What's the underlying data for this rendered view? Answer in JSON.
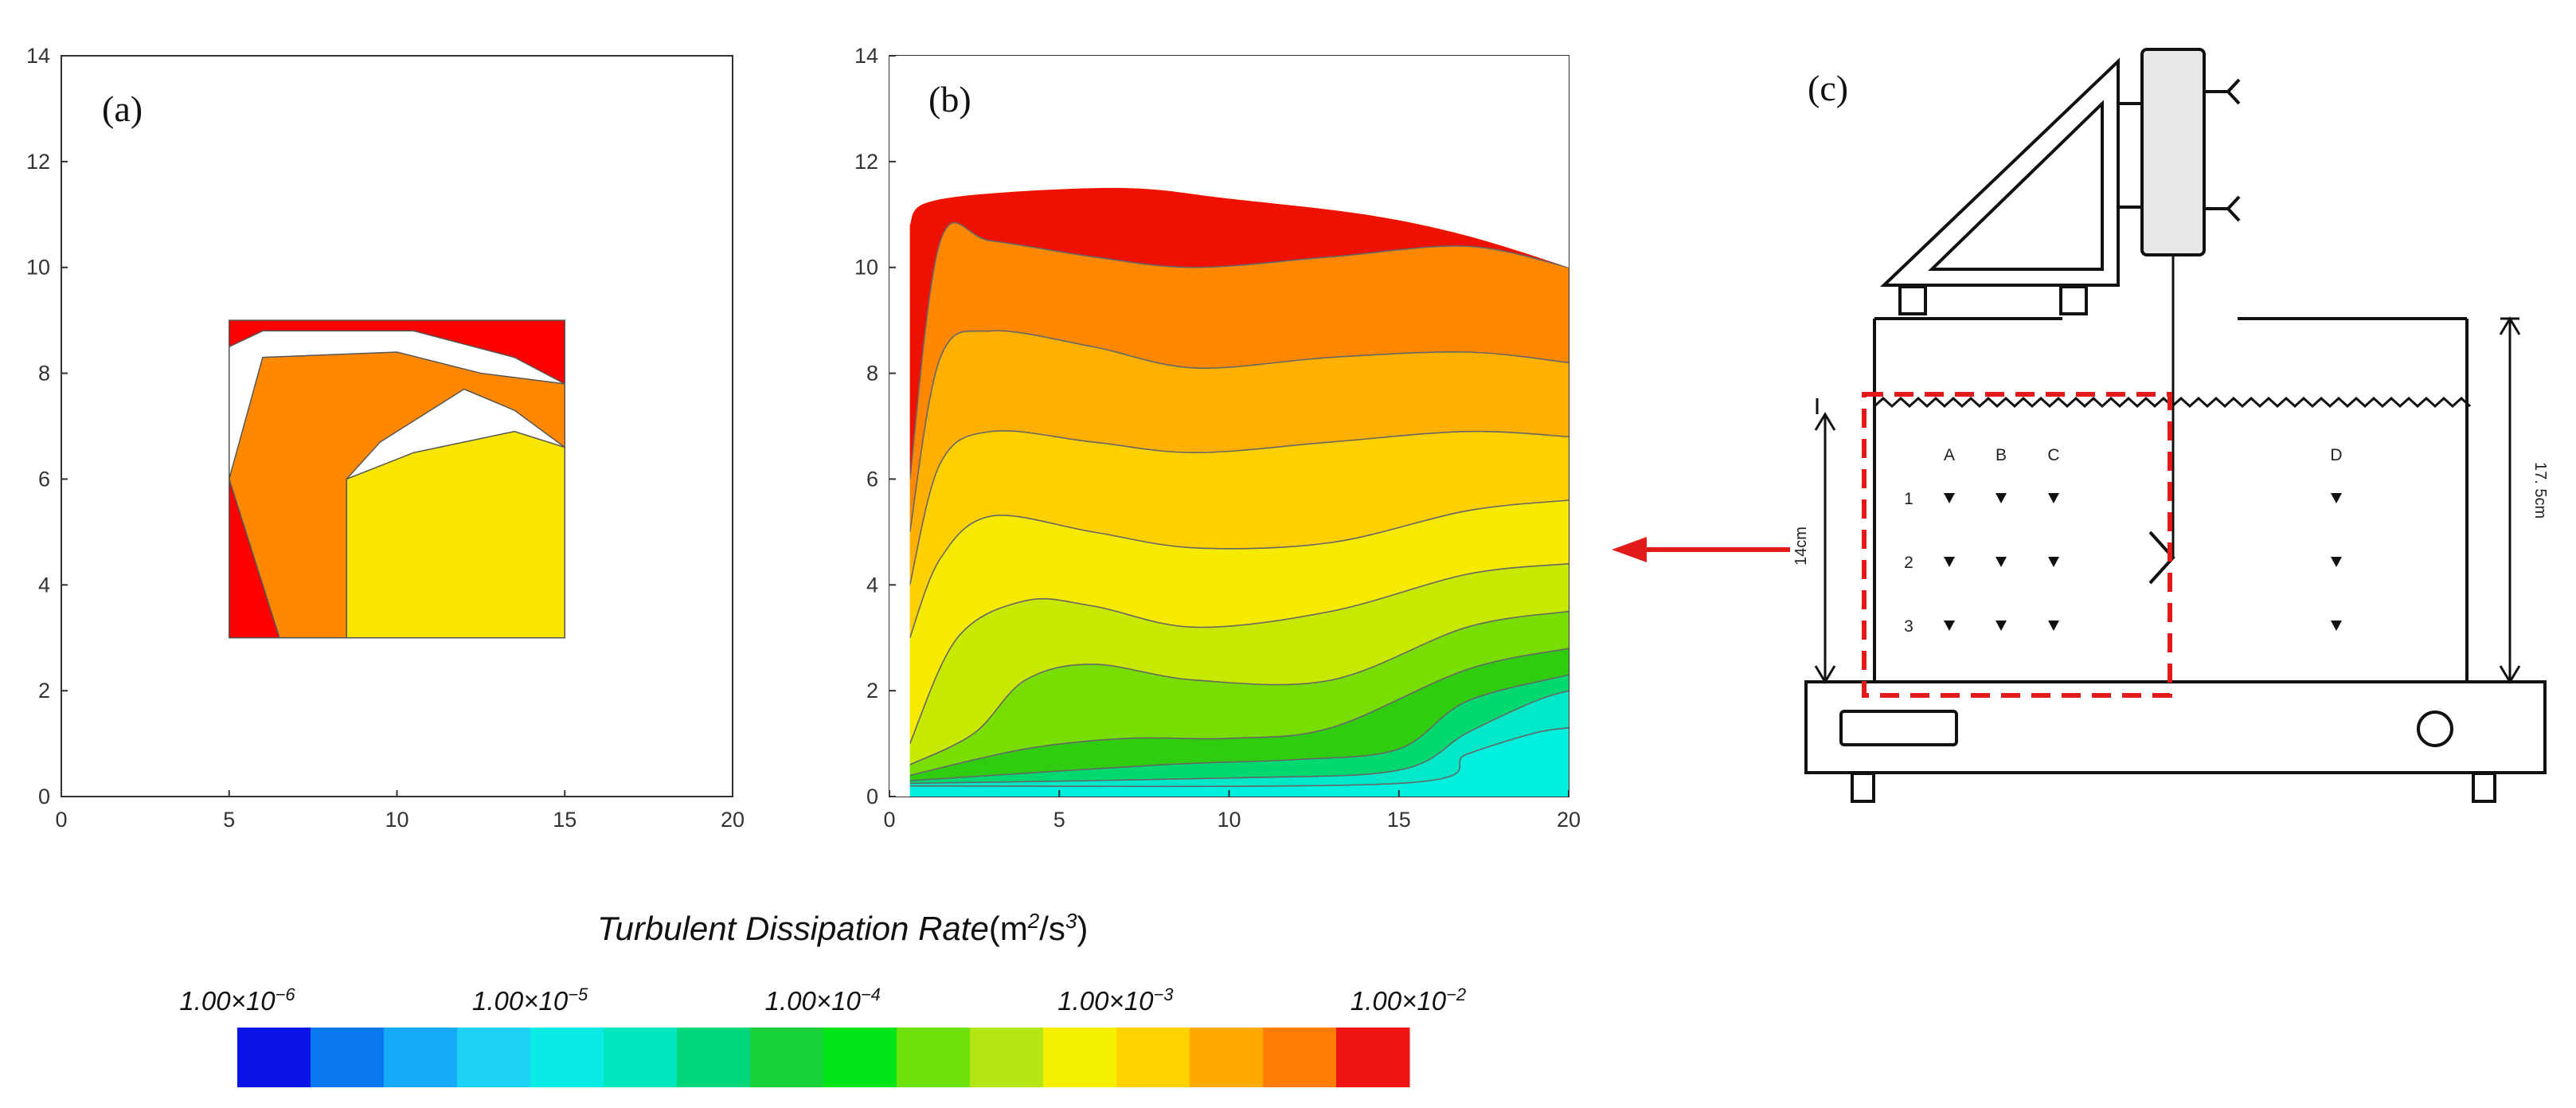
{
  "chart_data": [
    {
      "type": "contour",
      "panel_label": "(a)",
      "x_ticks": [
        "0",
        "5",
        "10",
        "15",
        "20"
      ],
      "y_ticks": [
        "0",
        "2",
        "4",
        "6",
        "8",
        "10",
        "12",
        "14"
      ],
      "xlim": [
        0,
        20
      ],
      "ylim": [
        0,
        14
      ],
      "data_region": {
        "x": [
          5,
          15
        ],
        "y": [
          3,
          9
        ]
      },
      "regions": [
        {
          "level": "1.00×10^-2",
          "color": "#ff0000",
          "outline": [
            [
              5,
              3
            ],
            [
              6.5,
              3
            ],
            [
              5,
              6
            ],
            [
              5,
              8.5
            ],
            [
              6,
              8.8
            ],
            [
              10.5,
              8.8
            ],
            [
              13.5,
              8.3
            ],
            [
              15,
              7.8
            ],
            [
              15,
              9
            ],
            [
              5,
              9
            ]
          ]
        },
        {
          "level": "1.00×10^-3 to 1.00×10^-2",
          "color": "#ff8800",
          "outline": [
            [
              6.5,
              3
            ],
            [
              8.5,
              3
            ],
            [
              8.5,
              6
            ],
            [
              9.5,
              6.7
            ],
            [
              12,
              7.7
            ],
            [
              13.5,
              7.3
            ],
            [
              15,
              6.6
            ],
            [
              15,
              7.8
            ],
            [
              12.5,
              8
            ],
            [
              10,
              8.4
            ],
            [
              6,
              8.3
            ],
            [
              5,
              6
            ]
          ]
        },
        {
          "level": "1.00×10^-3",
          "color": "#f8e600",
          "outline": [
            [
              8.5,
              3
            ],
            [
              15,
              3
            ],
            [
              15,
              6.6
            ],
            [
              13.5,
              6.9
            ],
            [
              10.5,
              6.5
            ],
            [
              8.5,
              6
            ]
          ]
        }
      ]
    },
    {
      "type": "contour",
      "panel_label": "(b)",
      "x_ticks": [
        "0",
        "5",
        "10",
        "15",
        "20"
      ],
      "y_ticks": [
        "0",
        "2",
        "4",
        "6",
        "8",
        "10",
        "12",
        "14"
      ],
      "xlim": [
        0,
        20
      ],
      "ylim": [
        0,
        14
      ],
      "top_boundary": [
        [
          0.6,
          10.8
        ],
        [
          1,
          11.2
        ],
        [
          3,
          11.4
        ],
        [
          7,
          11.5
        ],
        [
          10,
          11.3
        ],
        [
          14,
          11
        ],
        [
          17,
          10.6
        ],
        [
          20,
          10
        ]
      ],
      "bands": [
        {
          "color": "#ee1100",
          "level": "1.00×10^-2",
          "lower_edge": [
            [
              0.6,
              6
            ],
            [
              1.5,
              10.5
            ],
            [
              3,
              10.5
            ],
            [
              6,
              10.2
            ],
            [
              9,
              10
            ],
            [
              13,
              10.2
            ],
            [
              17,
              10.4
            ],
            [
              20,
              10
            ]
          ]
        },
        {
          "color": "#ff8800",
          "level": "",
          "lower_edge": [
            [
              0.6,
              5
            ],
            [
              1.5,
              8.3
            ],
            [
              3,
              8.8
            ],
            [
              6,
              8.5
            ],
            [
              9,
              8.1
            ],
            [
              13,
              8.3
            ],
            [
              17,
              8.4
            ],
            [
              20,
              8.2
            ]
          ]
        },
        {
          "color": "#ffb000",
          "level": "",
          "lower_edge": [
            [
              0.6,
              4
            ],
            [
              1.5,
              6.3
            ],
            [
              3,
              6.9
            ],
            [
              6,
              6.7
            ],
            [
              9,
              6.5
            ],
            [
              13,
              6.7
            ],
            [
              17,
              6.9
            ],
            [
              20,
              6.8
            ]
          ]
        },
        {
          "color": "#ffd000",
          "level": "1.00×10^-3",
          "lower_edge": [
            [
              0.6,
              3
            ],
            [
              1.5,
              4.5
            ],
            [
              3,
              5.3
            ],
            [
              6,
              5.0
            ],
            [
              9,
              4.7
            ],
            [
              13,
              4.8
            ],
            [
              17,
              5.4
            ],
            [
              20,
              5.6
            ]
          ]
        },
        {
          "color": "#f5ea00",
          "level": "",
          "lower_edge": [
            [
              0.6,
              1
            ],
            [
              2,
              3.0
            ],
            [
              4,
              3.7
            ],
            [
              6,
              3.6
            ],
            [
              9,
              3.2
            ],
            [
              13,
              3.5
            ],
            [
              17,
              4.2
            ],
            [
              20,
              4.4
            ]
          ]
        },
        {
          "color": "#c8e800",
          "level": "",
          "lower_edge": [
            [
              0.6,
              0.6
            ],
            [
              2.5,
              1.2
            ],
            [
              4,
              2.2
            ],
            [
              6,
              2.5
            ],
            [
              9,
              2.2
            ],
            [
              13,
              2.2
            ],
            [
              17,
              3.2
            ],
            [
              20,
              3.5
            ]
          ]
        },
        {
          "color": "#78dd00",
          "level": "1.00×10^-4",
          "lower_edge": [
            [
              0.6,
              0.4
            ],
            [
              4,
              0.9
            ],
            [
              7,
              1.1
            ],
            [
              10,
              1.1
            ],
            [
              13,
              1.3
            ],
            [
              17,
              2.4
            ],
            [
              20,
              2.8
            ]
          ]
        },
        {
          "color": "#30cc10",
          "level": "",
          "lower_edge": [
            [
              0.6,
              0.3
            ],
            [
              8,
              0.6
            ],
            [
              12,
              0.7
            ],
            [
              15,
              0.9
            ],
            [
              17,
              1.8
            ],
            [
              20,
              2.3
            ]
          ]
        },
        {
          "color": "#00d870",
          "level": "",
          "lower_edge": [
            [
              0.6,
              0.25
            ],
            [
              10,
              0.35
            ],
            [
              15,
              0.5
            ],
            [
              17,
              1.2
            ],
            [
              19,
              1.8
            ],
            [
              20,
              2.0
            ]
          ]
        },
        {
          "color": "#00e8c8",
          "level": "1.00×10^-5",
          "lower_edge": [
            [
              0.6,
              0.2
            ],
            [
              15,
              0.25
            ],
            [
              17,
              0.8
            ],
            [
              19,
              1.2
            ],
            [
              20,
              1.3
            ]
          ]
        }
      ]
    }
  ],
  "colorbar": {
    "title_text": "Turbulent Dissipation Rate",
    "title_units_prefix": "(m",
    "title_units_exp1": "2",
    "title_units_mid": "/s",
    "title_units_exp2": "3",
    "title_units_suffix": ")",
    "labels": [
      {
        "base": "1.00×10",
        "exp": "−6"
      },
      {
        "base": "1.00×10",
        "exp": "−5"
      },
      {
        "base": "1.00×10",
        "exp": "−4"
      },
      {
        "base": "1.00×10",
        "exp": "−3"
      },
      {
        "base": "1.00×10",
        "exp": "−2"
      }
    ],
    "colors": [
      "#0a14e6",
      "#0a78f0",
      "#14aaf5",
      "#1ed2f5",
      "#0aebe6",
      "#00e6be",
      "#00d77d",
      "#19d23c",
      "#00e619",
      "#6ee10a",
      "#b4e614",
      "#f5f000",
      "#ffd200",
      "#ffaa00",
      "#ff7d00",
      "#f01414"
    ]
  },
  "diagram": {
    "panel_label": "(c)",
    "depth_label": "14cm",
    "height_label": "17. 5cm",
    "column_labels": [
      "A",
      "B",
      "C",
      "D"
    ],
    "row_labels": [
      "1",
      "2",
      "3"
    ]
  }
}
